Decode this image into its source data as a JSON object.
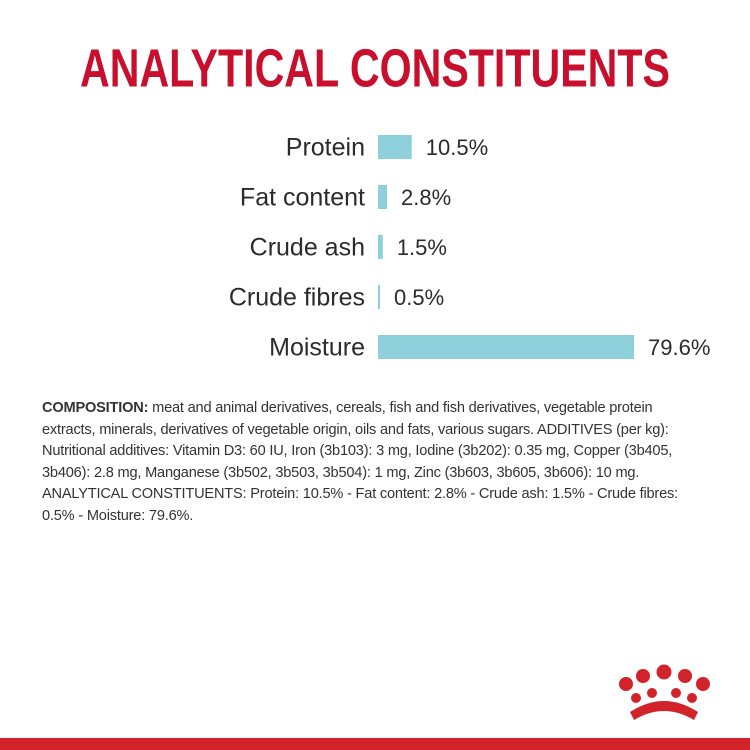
{
  "chart_data": {
    "type": "bar",
    "title": "ANALYTICAL CONSTITUENTS",
    "categories": [
      "Protein",
      "Fat content",
      "Crude ash",
      "Crude fibres",
      "Moisture"
    ],
    "values": [
      10.5,
      2.8,
      1.5,
      0.5,
      79.6
    ],
    "value_labels": [
      "10.5%",
      "2.8%",
      "1.5%",
      "0.5%",
      "79.6%"
    ],
    "color": "#8ecfdc",
    "orientation": "horizontal"
  },
  "composition": {
    "label": "COMPOSITION:",
    "text": "meat and animal derivatives, cereals, fish and fish derivatives, vegetable protein extracts, minerals, derivatives of vegetable origin, oils and fats, various sugars. ADDITIVES (per kg): Nutritional additives: Vitamin D3: 60 IU, Iron (3b103): 3 mg, Iodine (3b202): 0.35 mg, Copper (3b405, 3b406): 2.8 mg, Manganese (3b502, 3b503, 3b504): 1 mg, Zinc (3b603, 3b605, 3b606): 10 mg. ANALYTICAL CONSTITUENTS: Protein: 10.5% - Fat content: 2.8% - Crude ash: 1.5% - Crude fibres: 0.5% - Moisture: 79.6%."
  }
}
